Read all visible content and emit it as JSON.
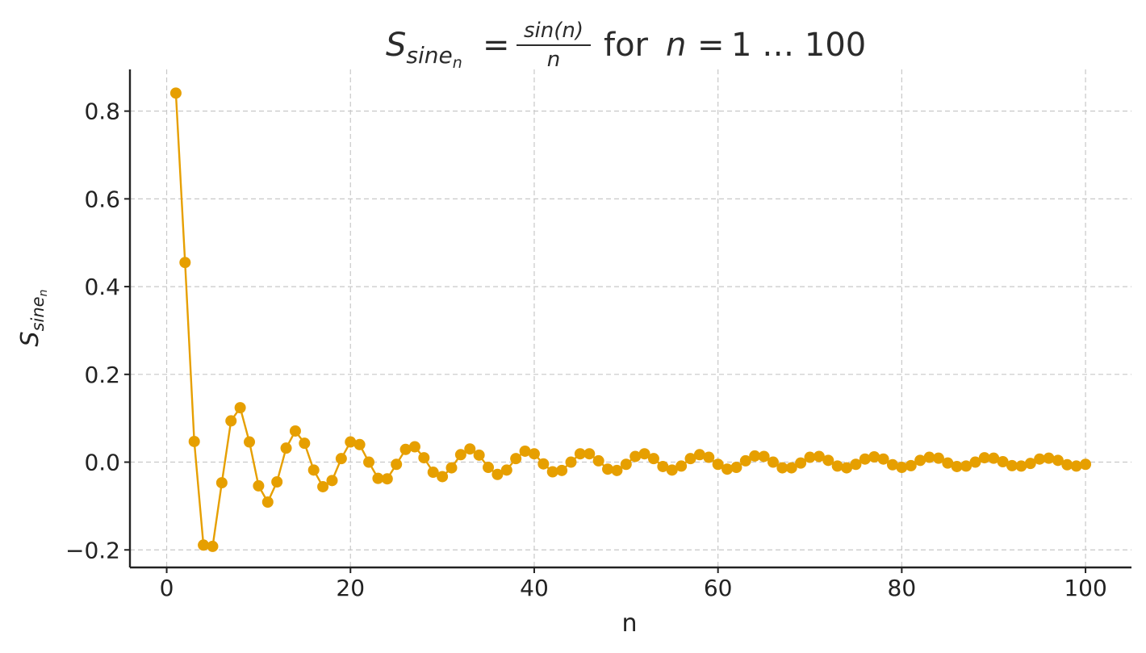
{
  "chart_data": {
    "type": "line",
    "title": {
      "lhs_symbol": "S",
      "lhs_subscript": "sine",
      "lhs_subsubscript": "n",
      "equals": "=",
      "frac_numerator": "sin(n)",
      "frac_denominator": "n",
      "word_for": "for",
      "range_var": "n",
      "range_equals": "=",
      "range_text": "1 … 100"
    },
    "xlabel": "n",
    "ylabel": {
      "symbol": "S",
      "subscript": "sine",
      "subsubscript": "n"
    },
    "xlim": [
      -4,
      105
    ],
    "ylim": [
      -0.24,
      0.895
    ],
    "xticks": [
      0,
      20,
      40,
      60,
      80,
      100
    ],
    "xtick_labels": [
      "0",
      "20",
      "40",
      "60",
      "80",
      "100"
    ],
    "yticks": [
      -0.2,
      0.0,
      0.2,
      0.4,
      0.6,
      0.8
    ],
    "ytick_labels": [
      "−0.2",
      "0.0",
      "0.2",
      "0.4",
      "0.6",
      "0.8"
    ],
    "grid": true,
    "series": [
      {
        "color": "#E69F00",
        "marker": "circle",
        "x": [
          1,
          2,
          3,
          4,
          5,
          6,
          7,
          8,
          9,
          10,
          11,
          12,
          13,
          14,
          15,
          16,
          17,
          18,
          19,
          20,
          21,
          22,
          23,
          24,
          25,
          26,
          27,
          28,
          29,
          30,
          31,
          32,
          33,
          34,
          35,
          36,
          37,
          38,
          39,
          40,
          41,
          42,
          43,
          44,
          45,
          46,
          47,
          48,
          49,
          50,
          51,
          52,
          53,
          54,
          55,
          56,
          57,
          58,
          59,
          60,
          61,
          62,
          63,
          64,
          65,
          66,
          67,
          68,
          69,
          70,
          71,
          72,
          73,
          74,
          75,
          76,
          77,
          78,
          79,
          80,
          81,
          82,
          83,
          84,
          85,
          86,
          87,
          88,
          89,
          90,
          91,
          92,
          93,
          94,
          95,
          96,
          97,
          98,
          99,
          100
        ],
        "y": [
          0.841,
          0.455,
          0.047,
          -0.189,
          -0.192,
          -0.047,
          0.094,
          0.124,
          0.046,
          -0.054,
          -0.091,
          -0.045,
          0.032,
          0.071,
          0.043,
          -0.018,
          -0.056,
          -0.042,
          0.008,
          0.046,
          0.04,
          -0.0,
          -0.037,
          -0.038,
          -0.005,
          0.029,
          0.035,
          0.01,
          -0.023,
          -0.033,
          -0.013,
          0.017,
          0.03,
          0.016,
          -0.012,
          -0.028,
          -0.018,
          0.008,
          0.025,
          0.019,
          -0.004,
          -0.022,
          -0.019,
          0.0,
          0.019,
          0.019,
          0.003,
          -0.016,
          -0.019,
          -0.005,
          0.013,
          0.019,
          0.008,
          -0.01,
          -0.018,
          -0.009,
          0.008,
          0.017,
          0.011,
          -0.005,
          -0.016,
          -0.012,
          0.003,
          0.014,
          0.013,
          -0.0,
          -0.013,
          -0.013,
          -0.002,
          0.011,
          0.013,
          0.004,
          -0.009,
          -0.013,
          -0.005,
          0.007,
          0.012,
          0.007,
          -0.006,
          -0.012,
          -0.008,
          0.004,
          0.011,
          0.009,
          -0.002,
          -0.01,
          -0.009,
          0.0,
          0.01,
          0.009,
          0.001,
          -0.008,
          -0.009,
          -0.003,
          0.007,
          0.009,
          0.004,
          -0.006,
          -0.009,
          -0.005
        ]
      }
    ]
  }
}
